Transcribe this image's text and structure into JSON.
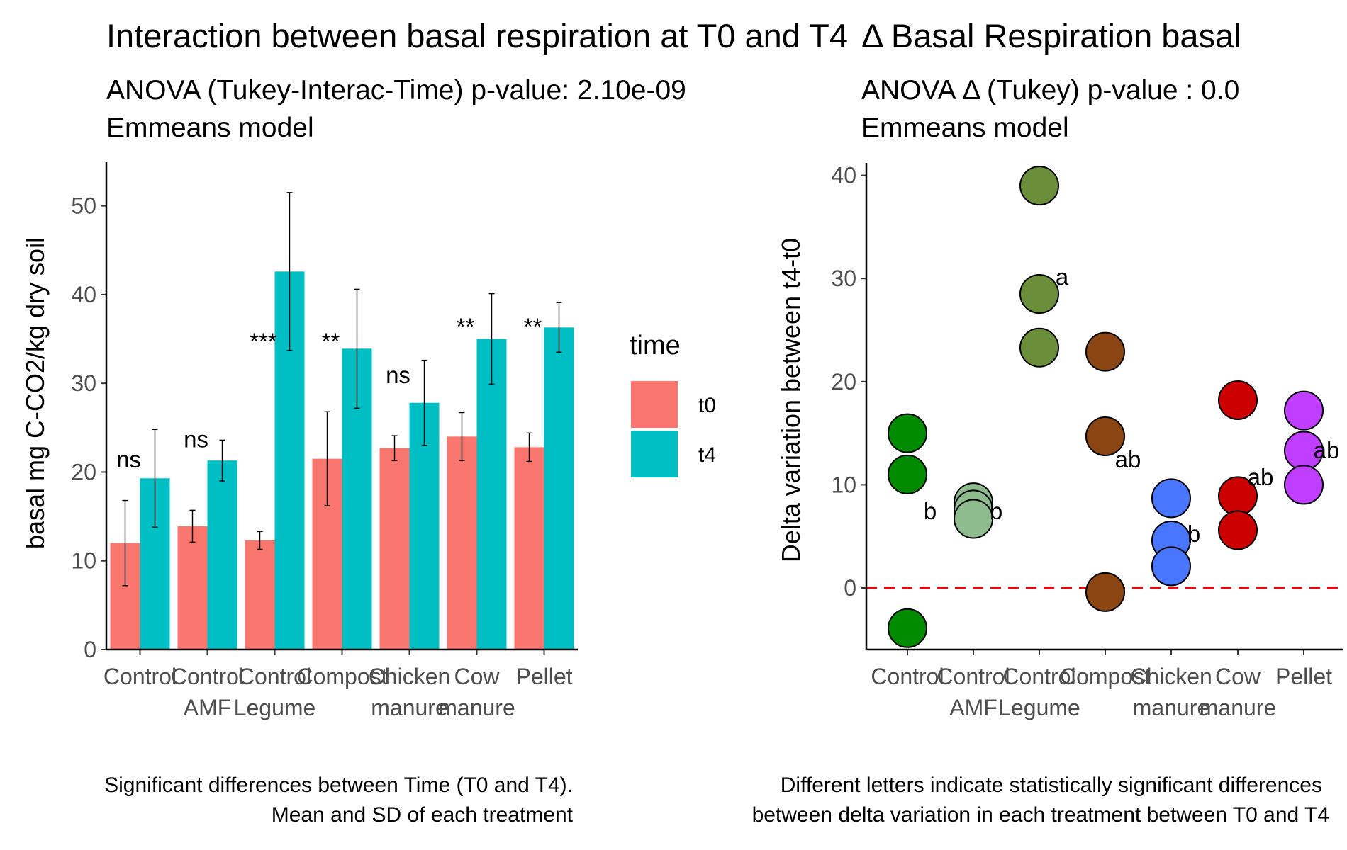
{
  "chart_data": [
    {
      "type": "bar",
      "title": "Interaction between basal respiration at T0 and T4",
      "subtitle_line1": "ANOVA (Tukey-Interac-Time) p-value: 2.10e-09",
      "subtitle_line2": "Emmeans model",
      "ylabel": "basal mg C-CO2/kg dry soil",
      "xlabel": "",
      "ylim": [
        0,
        55
      ],
      "yticks": [
        0,
        10,
        20,
        30,
        40,
        50
      ],
      "categories": [
        [
          "Control"
        ],
        [
          "Control",
          "AMF"
        ],
        [
          "Control",
          "Legume"
        ],
        [
          "Compost"
        ],
        [
          "Chicken",
          "manure"
        ],
        [
          "Cow",
          "manure"
        ],
        [
          "Pellet"
        ]
      ],
      "series": [
        {
          "name": "t0",
          "color": "#F8766D",
          "values": [
            12.0,
            13.9,
            12.3,
            21.5,
            22.7,
            24.0,
            22.8
          ],
          "sd": [
            4.8,
            1.8,
            1.0,
            5.3,
            1.4,
            2.7,
            1.6
          ]
        },
        {
          "name": "t4",
          "color": "#00BFC4",
          "values": [
            19.3,
            21.3,
            42.6,
            33.9,
            27.8,
            35.0,
            36.3
          ],
          "sd": [
            5.5,
            2.3,
            8.9,
            6.7,
            4.8,
            5.1,
            2.8
          ]
        }
      ],
      "significance": [
        "ns",
        "ns",
        "***",
        "**",
        "ns",
        "**",
        "**"
      ],
      "legend": {
        "title": "time",
        "placement": "right",
        "labels": [
          "t0",
          "t4"
        ]
      },
      "caption_line1": "Significant differences between Time (T0 and T4).",
      "caption_line2": "Mean and SD of each treatment"
    },
    {
      "type": "scatter",
      "title": "Δ Basal Respiration basal",
      "subtitle_line1": "ANOVA Δ (Tukey) p-value : 0.0",
      "subtitle_line2": "Emmeans model",
      "ylabel": "Delta variation between t4-t0",
      "xlabel": "",
      "ylim": [
        -6,
        41
      ],
      "yticks": [
        0,
        10,
        20,
        30,
        40
      ],
      "reference_line": {
        "y": 0,
        "color": "#FF0000",
        "style": "dashed"
      },
      "categories": [
        [
          "Control"
        ],
        [
          "Control",
          "AMF"
        ],
        [
          "Control",
          "Legume"
        ],
        [
          "Compost"
        ],
        [
          "Chicken",
          "manure"
        ],
        [
          "Cow",
          "manure"
        ],
        [
          "Pellet"
        ]
      ],
      "groups": [
        {
          "color": "#008B00",
          "values": [
            15.0,
            11.0,
            -3.9
          ],
          "letter": "b",
          "letter_y": 7.5
        },
        {
          "color": "#8FBC8F",
          "values": [
            8.3,
            7.6,
            6.7
          ],
          "letter": "b",
          "letter_y": 7.5
        },
        {
          "color": "#6B8E3A",
          "values": [
            39.0,
            28.5,
            23.3
          ],
          "letter": "a",
          "letter_y": 30.2
        },
        {
          "color": "#8B4513",
          "values": [
            22.9,
            14.7,
            -0.4
          ],
          "letter": "ab",
          "letter_y": 12.5
        },
        {
          "color": "#4876FF",
          "values": [
            8.7,
            4.6,
            2.1
          ],
          "letter": "b",
          "letter_y": 5.3
        },
        {
          "color": "#CD0000",
          "values": [
            18.2,
            8.9,
            5.6
          ],
          "letter": "ab",
          "letter_y": 10.8
        },
        {
          "color": "#BF3EFF",
          "values": [
            17.2,
            13.3,
            10.0
          ],
          "letter": "ab",
          "letter_y": 13.4
        }
      ],
      "caption_line1": "Different letters indicate statistically significant differences",
      "caption_line2": "between delta variation in each treatment between T0 and T4"
    }
  ]
}
